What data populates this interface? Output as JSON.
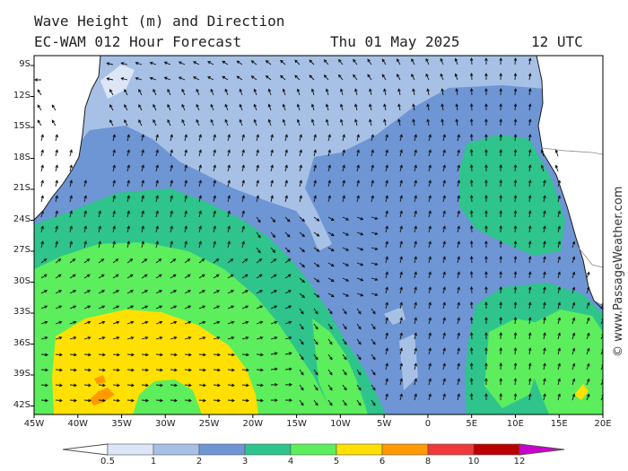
{
  "header": {
    "line1": "Wave Height (m) and Direction",
    "model": "EC-WAM 012 Hour Forecast",
    "date": "Thu 01 May 2025",
    "time": "12 UTC"
  },
  "copyright": "© www.PassageWeather.com",
  "axes": {
    "lat_labels": [
      "9S",
      "12S",
      "15S",
      "18S",
      "21S",
      "24S",
      "27S",
      "30S",
      "33S",
      "36S",
      "39S",
      "42S"
    ],
    "lon_labels": [
      "45W",
      "40W",
      "35W",
      "30W",
      "25W",
      "20W",
      "15W",
      "10W",
      "5W",
      "0",
      "5E",
      "10E",
      "15E",
      "20E"
    ]
  },
  "legend": {
    "labels": [
      "0.5",
      "1",
      "2",
      "3",
      "4",
      "5",
      "6",
      "8",
      "10",
      "12"
    ],
    "colors": [
      "#dde6f6",
      "#a7c1e6",
      "#6e95d4",
      "#2ec48c",
      "#5cee5c",
      "#ffe000",
      "#ff9a00",
      "#ee3a3a",
      "#bb0000",
      "#cc00cc"
    ]
  },
  "land_color": "#ffffff",
  "coast_color": "#1a1a1a"
}
